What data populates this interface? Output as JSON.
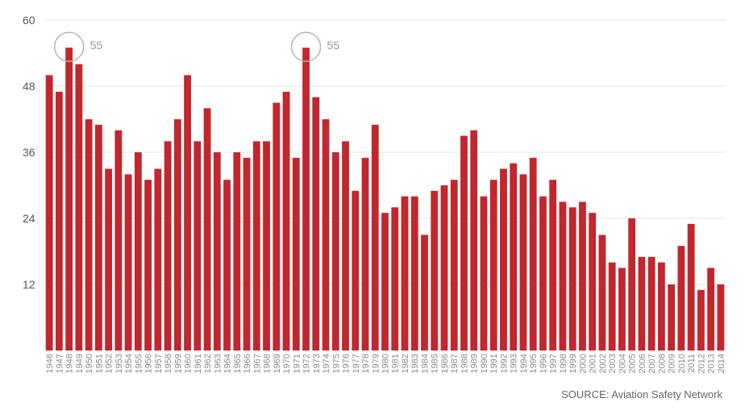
{
  "chart_data": {
    "type": "bar",
    "title": "",
    "xlabel": "",
    "ylabel": "",
    "ylim": [
      0,
      60
    ],
    "yticks": [
      12,
      24,
      36,
      48,
      60
    ],
    "grid": true,
    "bar_color": "#c1272d",
    "categories": [
      "1946",
      "1947",
      "1948",
      "1949",
      "1950",
      "1951",
      "1952",
      "1953",
      "1954",
      "1955",
      "1956",
      "1957",
      "1958",
      "1959",
      "1960",
      "1961",
      "1962",
      "1963",
      "1964",
      "1965",
      "1966",
      "1967",
      "1968",
      "1969",
      "1970",
      "1971",
      "1972",
      "1973",
      "1974",
      "1975",
      "1976",
      "1977",
      "1978",
      "1979",
      "1980",
      "1981",
      "1982",
      "1983",
      "1984",
      "1985",
      "1986",
      "1987",
      "1988",
      "1989",
      "1990",
      "1991",
      "1992",
      "1993",
      "1994",
      "1995",
      "1996",
      "1997",
      "1998",
      "1999",
      "2000",
      "2001",
      "2002",
      "2003",
      "2004",
      "2005",
      "2006",
      "2007",
      "2008",
      "2009",
      "2010",
      "2011",
      "2012",
      "2013",
      "2014"
    ],
    "values": [
      50,
      47,
      55,
      52,
      42,
      41,
      33,
      40,
      32,
      36,
      31,
      33,
      38,
      42,
      50,
      38,
      44,
      36,
      31,
      36,
      35,
      38,
      38,
      45,
      47,
      35,
      55,
      46,
      42,
      36,
      38,
      29,
      35,
      41,
      25,
      26,
      28,
      28,
      21,
      29,
      30,
      31,
      39,
      40,
      28,
      31,
      33,
      34,
      32,
      35,
      28,
      31,
      27,
      26,
      27,
      25,
      21,
      16,
      15,
      24,
      17,
      17,
      16,
      12,
      19,
      23,
      11,
      15,
      12
    ],
    "annotations": [
      {
        "category": "1948",
        "label": "55"
      },
      {
        "category": "1972",
        "label": "55"
      }
    ],
    "source": "SOURCE: Aviation Safety Network"
  }
}
